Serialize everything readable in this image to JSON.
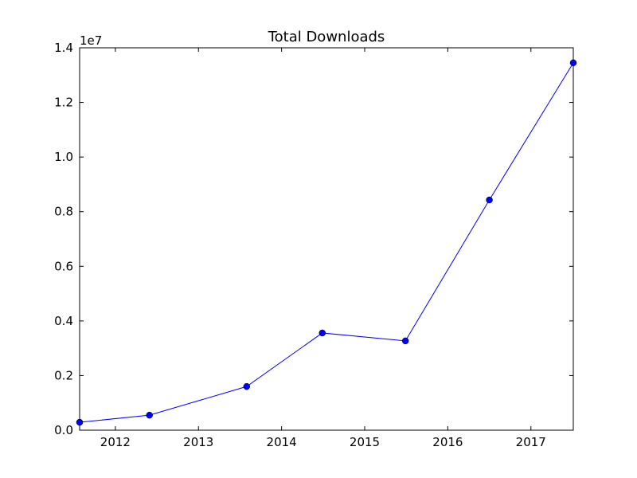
{
  "chart_data": {
    "type": "line",
    "title": "Total Downloads",
    "y_offset_label": "1e7",
    "x": [
      2011.57,
      2012.41,
      2013.58,
      2014.49,
      2015.49,
      2016.5,
      2017.51
    ],
    "series": [
      {
        "name": "Total Downloads",
        "color": "#0000ff",
        "values": [
          290000,
          550000,
          1600000,
          3560000,
          3270000,
          8430000,
          13450000
        ]
      }
    ],
    "xlim": [
      2011.57,
      2017.51
    ],
    "xticks": [
      2012,
      2013,
      2014,
      2015,
      2016,
      2017
    ],
    "ylim": [
      0,
      14000000
    ],
    "yticks": [
      {
        "value": 0,
        "label": "0.0"
      },
      {
        "value": 2000000,
        "label": "0.2"
      },
      {
        "value": 4000000,
        "label": "0.4"
      },
      {
        "value": 6000000,
        "label": "0.6"
      },
      {
        "value": 8000000,
        "label": "0.8"
      },
      {
        "value": 10000000,
        "label": "1.0"
      },
      {
        "value": 12000000,
        "label": "1.2"
      },
      {
        "value": 14000000,
        "label": "1.4"
      }
    ],
    "grid": false
  }
}
